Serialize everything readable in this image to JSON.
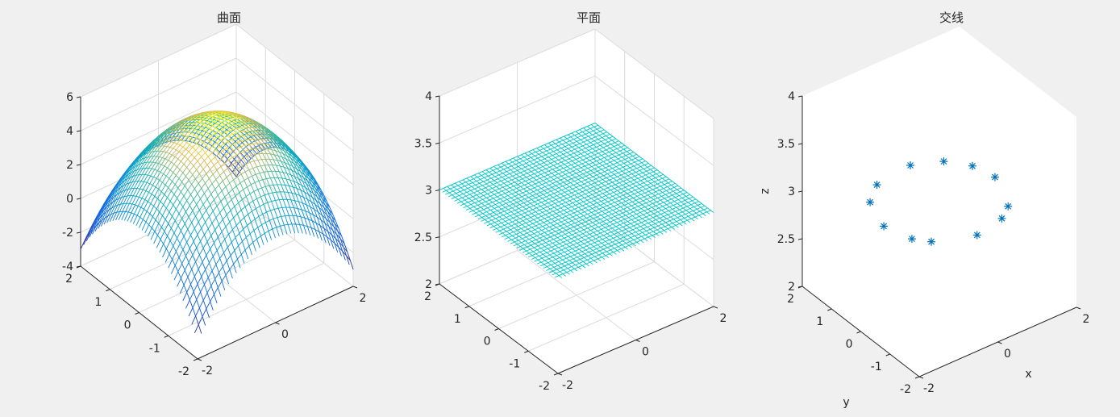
{
  "window": {
    "background": "#f0f0f0"
  },
  "colors": {
    "plane": "#00c8c8",
    "marker": "#0072bd",
    "grid": "#dcdcdc",
    "axis": "#262626",
    "colormap": "parula"
  },
  "chart_data": [
    {
      "type": "surface",
      "title": "曲面",
      "xlabel": "",
      "ylabel": "",
      "zlabel": "",
      "xlim": [
        -2,
        2
      ],
      "ylim": [
        -2,
        2
      ],
      "zlim": [
        -4,
        6
      ],
      "xticks": [
        "-2",
        "0",
        "2"
      ],
      "yticks": [
        "-2",
        "-1",
        "0",
        "1",
        "2"
      ],
      "zticks": [
        "-4",
        "-2",
        "0",
        "2",
        "4",
        "6"
      ],
      "function": "z = 5 - x^2 - y^2",
      "grid": true
    },
    {
      "type": "surface",
      "title": "平面",
      "xlabel": "",
      "ylabel": "",
      "zlabel": "",
      "xlim": [
        -2,
        2
      ],
      "ylim": [
        -2,
        2
      ],
      "zlim": [
        2,
        4
      ],
      "xticks": [
        "-2",
        "0",
        "2"
      ],
      "yticks": [
        "-2",
        "-1",
        "0",
        "1",
        "2"
      ],
      "zticks": [
        "2",
        "2.5",
        "3",
        "3.5",
        "4"
      ],
      "function": "z = 3",
      "grid": true
    },
    {
      "type": "scatter3d",
      "title": "交线",
      "xlabel": "x",
      "ylabel": "y",
      "zlabel": "z",
      "xlim": [
        -2,
        2
      ],
      "ylim": [
        -2,
        2
      ],
      "zlim": [
        2,
        4
      ],
      "xticks": [
        "-2",
        "0",
        "2"
      ],
      "yticks": [
        "-2",
        "-1",
        "0",
        "1",
        "2"
      ],
      "zticks": [
        "2",
        "2.5",
        "3",
        "3.5",
        "4"
      ],
      "marker": "*",
      "grid": false,
      "points": [
        {
          "x": 1.414,
          "y": 0.0,
          "z": 3
        },
        {
          "x": 1.283,
          "y": 0.594,
          "z": 3
        },
        {
          "x": 0.914,
          "y": 1.079,
          "z": 3
        },
        {
          "x": 0.291,
          "y": 1.384,
          "z": 3
        },
        {
          "x": -0.657,
          "y": 1.252,
          "z": 3
        },
        {
          "x": -1.134,
          "y": 0.845,
          "z": 3
        },
        {
          "x": -1.414,
          "y": 0.0,
          "z": 3
        },
        {
          "x": -1.224,
          "y": -0.707,
          "z": 3
        },
        {
          "x": -0.97,
          "y": -1.03,
          "z": 3
        },
        {
          "x": -0.09,
          "y": -1.411,
          "z": 3
        },
        {
          "x": 0.659,
          "y": -1.251,
          "z": 3
        },
        {
          "x": 1.014,
          "y": -0.986,
          "z": 3
        }
      ]
    }
  ]
}
